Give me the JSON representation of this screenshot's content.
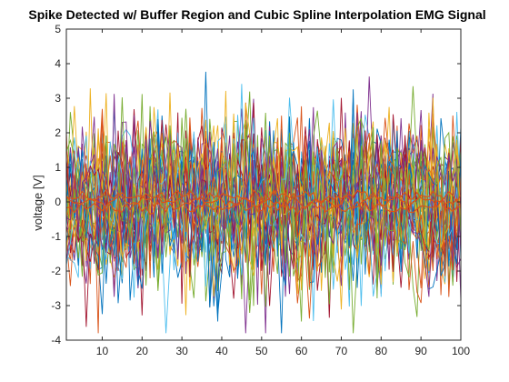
{
  "chart_data": {
    "type": "line",
    "title": "Spike Detected w/ Buffer Region and Cubic Spline Interpolation EMG Signal",
    "xlabel": "",
    "ylabel": "voltage [V]",
    "xlim": [
      1,
      100
    ],
    "ylim": [
      -4,
      5
    ],
    "x_ticks": [
      "10",
      "20",
      "30",
      "40",
      "50",
      "60",
      "70",
      "80",
      "90",
      "100"
    ],
    "y_ticks": [
      "-4",
      "-3",
      "-2",
      "-1",
      "0",
      "1",
      "2",
      "3",
      "4",
      "5"
    ],
    "grid": false,
    "legend": "none",
    "series_count_estimate": 40,
    "series_description": "Dense overlay of many noisy EMG traces over samples 1-100; values mostly within about -3.8 to 4.1 V, centered near 0 V. A few smoother orange traces lie near 0 V.",
    "amplitude_envelope": {
      "min": -3.8,
      "max": 4.1,
      "center": 0
    },
    "colors": [
      "#0072BD",
      "#D95319",
      "#EDB120",
      "#7E2F8E",
      "#77AC30",
      "#4DBEEE",
      "#A2142F"
    ]
  }
}
